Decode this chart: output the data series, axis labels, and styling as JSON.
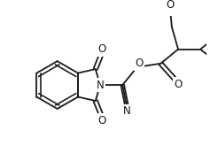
{
  "bg_color": "#ffffff",
  "line_color": "#1a1a1a",
  "lw": 1.3,
  "figsize": [
    2.46,
    1.82
  ],
  "dpi": 100,
  "xlim": [
    0,
    246
  ],
  "ylim": [
    0,
    182
  ]
}
